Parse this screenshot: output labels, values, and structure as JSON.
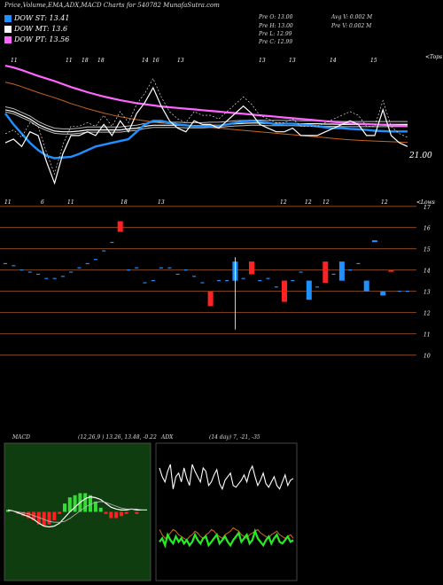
{
  "header": {
    "title": "Price,Volume,EMA,ADX,MACD Charts for 540782  MunafaSutra.com",
    "legend": [
      {
        "label": "DOW ST: 13.41",
        "color": "#1e90ff"
      },
      {
        "label": "DOW MT: 13.6",
        "color": "#ffffff"
      },
      {
        "label": "DOW PT: 13.56",
        "color": "#ff66ff"
      }
    ],
    "quotes_left": [
      "Pre   O: 13.00",
      "Pre   H: 13.00",
      "Pre   L: 12.99",
      "Pre   C: 12.99"
    ],
    "quotes_right": [
      "Avg V: 0.002  M",
      "Pre   V: 0.002  M"
    ]
  },
  "price_panel": {
    "right_label": "21.00",
    "right_tag": "<Tops",
    "top_dates": [
      "11",
      "11",
      "18",
      "18",
      "14",
      "16",
      "13",
      "13",
      "13",
      "14",
      "15"
    ]
  },
  "candle_panel": {
    "right_tag": "<Lows",
    "top_dates": [
      "11",
      "6",
      "11",
      "18",
      "13",
      "12",
      "12",
      "12",
      "12"
    ],
    "yticks": [
      17,
      16,
      15,
      14,
      13,
      12,
      11,
      10
    ]
  },
  "macd": {
    "label": "MACD",
    "params": "(12,26,9 ) 13.26, 13.48, -0.22"
  },
  "adx": {
    "label": "ADX",
    "params": "(14  day) 7, -21, -35"
  },
  "chart_data": [
    {
      "type": "line",
      "x": [
        1,
        2,
        3,
        4,
        5,
        6,
        7,
        8,
        9,
        10,
        11,
        12,
        13,
        14,
        15,
        16,
        17,
        18,
        19,
        20,
        21,
        22,
        23,
        24,
        25,
        26,
        27,
        28,
        29,
        30,
        31,
        32,
        33,
        34,
        35,
        36,
        37,
        38,
        39,
        40,
        41,
        42,
        43,
        44,
        45,
        46,
        47,
        48,
        49,
        50
      ],
      "series": [
        {
          "name": "DOW ST",
          "color": "#1e90ff",
          "values": [
            13.9,
            13.6,
            13.35,
            13.1,
            12.9,
            12.75,
            12.68,
            12.7,
            12.72,
            12.8,
            12.9,
            13.0,
            13.05,
            13.1,
            13.15,
            13.2,
            13.4,
            13.6,
            13.7,
            13.7,
            13.65,
            13.6,
            13.58,
            13.55,
            13.55,
            13.55,
            13.56,
            13.6,
            13.65,
            13.68,
            13.7,
            13.68,
            13.65,
            13.6,
            13.62,
            13.62,
            13.6,
            13.58,
            13.55,
            13.52,
            13.5,
            13.5,
            13.48,
            13.47,
            13.45,
            13.43,
            13.42,
            13.41,
            13.41,
            13.41
          ]
        },
        {
          "name": "DOW MT",
          "color": "#ffffff",
          "values": [
            14.0,
            13.95,
            13.85,
            13.75,
            13.6,
            13.5,
            13.42,
            13.4,
            13.4,
            13.42,
            13.45,
            13.45,
            13.45,
            13.45,
            13.45,
            13.48,
            13.5,
            13.55,
            13.58,
            13.58,
            13.58,
            13.58,
            13.57,
            13.57,
            13.57,
            13.58,
            13.58,
            13.6,
            13.62,
            13.63,
            13.64,
            13.64,
            13.63,
            13.63,
            13.63,
            13.63,
            13.62,
            13.62,
            13.62,
            13.61,
            13.61,
            13.6,
            13.6,
            13.6,
            13.6,
            13.6,
            13.6,
            13.6,
            13.6,
            13.6
          ]
        },
        {
          "name": "DOW PT",
          "color": "#ff66ff",
          "values": [
            15.2,
            15.15,
            15.08,
            15.0,
            14.92,
            14.85,
            14.78,
            14.7,
            14.62,
            14.55,
            14.48,
            14.42,
            14.36,
            14.31,
            14.26,
            14.22,
            14.18,
            14.15,
            14.12,
            14.09,
            14.07,
            14.05,
            14.03,
            14.01,
            13.99,
            13.97,
            13.95,
            13.93,
            13.91,
            13.89,
            13.87,
            13.85,
            13.83,
            13.81,
            13.79,
            13.77,
            13.75,
            13.73,
            13.71,
            13.69,
            13.67,
            13.65,
            13.63,
            13.62,
            13.61,
            13.6,
            13.59,
            13.58,
            13.57,
            13.56
          ]
        },
        {
          "name": "Price",
          "color": "#ffffff",
          "values": [
            13.1,
            13.2,
            13.0,
            13.4,
            13.3,
            12.6,
            12.0,
            12.8,
            13.3,
            13.3,
            13.4,
            13.3,
            13.6,
            13.3,
            13.7,
            13.4,
            13.9,
            14.2,
            14.6,
            14.1,
            13.7,
            13.5,
            13.4,
            13.7,
            13.6,
            13.6,
            13.5,
            13.7,
            13.9,
            14.1,
            13.9,
            13.6,
            13.5,
            13.4,
            13.4,
            13.5,
            13.3,
            13.3,
            13.3,
            13.4,
            13.5,
            13.6,
            13.7,
            13.6,
            13.3,
            13.3,
            14.0,
            13.3,
            13.1,
            13.0
          ]
        }
      ]
    },
    {
      "type": "bar",
      "title": "candles",
      "x": [
        1,
        2,
        3,
        4,
        5,
        6,
        7,
        8,
        9,
        10,
        11,
        12,
        13,
        14,
        15,
        16,
        17,
        18,
        19,
        20,
        21,
        22,
        23,
        24,
        25,
        26,
        27,
        28,
        29,
        30,
        31,
        32,
        33,
        34,
        35,
        36,
        37,
        38,
        39,
        40,
        41,
        42,
        43,
        44,
        45,
        46,
        47,
        48,
        49,
        50
      ],
      "open": [
        14.3,
        14.2,
        14.0,
        13.9,
        13.8,
        13.6,
        13.6,
        13.7,
        13.9,
        14.1,
        14.3,
        14.5,
        14.9,
        15.3,
        15.8,
        14.0,
        14.1,
        13.4,
        13.5,
        14.1,
        14.1,
        13.8,
        14.0,
        13.7,
        13.4,
        12.3,
        13.5,
        13.5,
        13.5,
        13.6,
        14.4,
        13.5,
        13.6,
        13.2,
        13.5,
        13.5,
        13.9,
        12.6,
        13.2,
        14.4,
        13.8,
        13.5,
        14.0,
        14.3,
        13.5,
        15.4,
        13.0,
        14.0,
        13.0,
        13.0
      ],
      "close": [
        14.3,
        14.2,
        14.0,
        13.9,
        13.8,
        13.6,
        13.6,
        13.7,
        13.9,
        14.1,
        14.3,
        14.5,
        14.9,
        15.3,
        16.3,
        14.1,
        14.1,
        13.4,
        13.5,
        14.1,
        14.1,
        13.8,
        14.0,
        13.7,
        13.4,
        13.0,
        13.5,
        13.5,
        14.4,
        13.6,
        13.8,
        13.5,
        13.6,
        13.2,
        12.5,
        13.5,
        13.9,
        13.5,
        13.2,
        13.4,
        13.8,
        14.4,
        14.0,
        14.3,
        13.0,
        15.4,
        12.8,
        14.0,
        13.0,
        13.0
      ],
      "dir": [
        "flat",
        "flat",
        "flat",
        "flat",
        "flat",
        "flat",
        "flat",
        "flat",
        "flat",
        "flat",
        "flat",
        "flat",
        "flat",
        "flat",
        "down",
        "flat",
        "flat",
        "flat",
        "flat",
        "flat",
        "flat",
        "flat",
        "flat",
        "flat",
        "flat",
        "down",
        "flat",
        "flat",
        "up",
        "flat",
        "down",
        "flat",
        "flat",
        "flat",
        "down",
        "flat",
        "flat",
        "up",
        "flat",
        "down",
        "flat",
        "up",
        "flat",
        "flat",
        "up",
        "up",
        "up",
        "down",
        "flat",
        "flat"
      ]
    },
    {
      "type": "line",
      "title": "MACD",
      "series": [
        {
          "name": "MACD",
          "values": [
            0.02,
            0.01,
            -0.01,
            -0.03,
            -0.05,
            -0.08,
            -0.12,
            -0.15,
            -0.16,
            -0.15,
            -0.12,
            -0.06,
            0.0,
            0.05,
            0.1,
            0.14,
            0.16,
            0.15,
            0.13,
            0.09,
            0.05,
            0.03,
            0.02,
            0.02,
            0.03,
            0.02,
            0.02,
            0.02
          ]
        },
        {
          "name": "Signal",
          "values": [
            0.01,
            0.01,
            0.0,
            -0.01,
            -0.02,
            -0.04,
            -0.06,
            -0.08,
            -0.1,
            -0.11,
            -0.11,
            -0.1,
            -0.07,
            -0.03,
            0.01,
            0.05,
            0.08,
            0.1,
            0.11,
            0.1,
            0.08,
            0.06,
            0.04,
            0.03,
            0.03,
            0.03,
            0.02,
            0.02
          ]
        }
      ]
    },
    {
      "type": "line",
      "title": "ADX",
      "series": [
        {
          "name": "+DI",
          "values": [
            60,
            55,
            52,
            58,
            62,
            48,
            55,
            57,
            52,
            60,
            54,
            50,
            62,
            58,
            55,
            52,
            60,
            58,
            50,
            52,
            56,
            59,
            51,
            48,
            53,
            55,
            57,
            50,
            49,
            51,
            53,
            56,
            52,
            58,
            61,
            55,
            50,
            53,
            57,
            51,
            49,
            52,
            55,
            50,
            48,
            52,
            56,
            50,
            53,
            54
          ]
        },
        {
          "name": "ADX",
          "values": [
            25,
            22,
            20,
            21,
            23,
            25,
            24,
            22,
            21,
            20,
            19,
            21,
            22,
            24,
            23,
            21,
            20,
            22,
            23,
            25,
            24,
            22,
            21,
            20,
            22,
            23,
            24,
            26,
            25,
            24,
            22,
            21,
            20,
            22,
            23,
            24,
            25,
            23,
            22,
            21,
            20,
            22,
            23,
            24,
            22,
            21,
            20,
            21,
            22,
            20
          ]
        },
        {
          "name": "-DI",
          "values": [
            18,
            20,
            16,
            22,
            19,
            17,
            21,
            18,
            20,
            17,
            19,
            16,
            18,
            22,
            19,
            17,
            20,
            21,
            16,
            18,
            20,
            22,
            17,
            19,
            21,
            18,
            16,
            19,
            21,
            23,
            18,
            20,
            22,
            17,
            19,
            24,
            20,
            18,
            16,
            19,
            21,
            17,
            20,
            22,
            18,
            17,
            19,
            21,
            18,
            19
          ]
        }
      ]
    }
  ]
}
